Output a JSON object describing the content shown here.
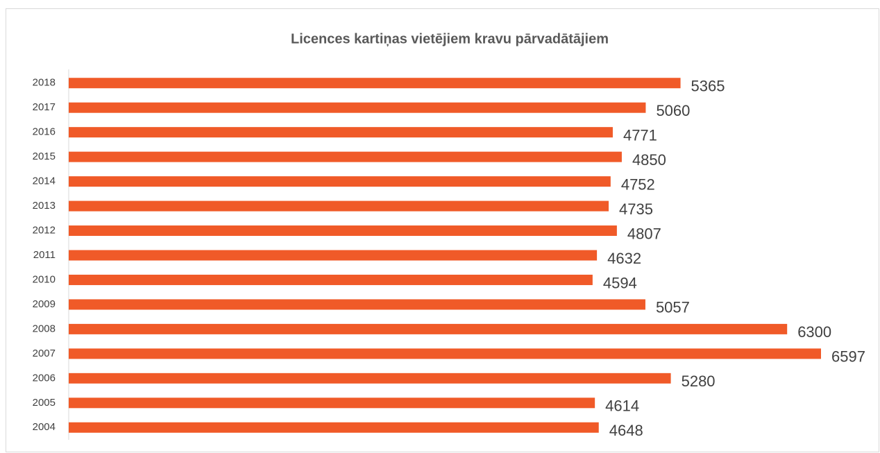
{
  "chart_data": {
    "type": "barh",
    "title": "Licences kartiņas vietējiem kravu pārvadātājiem",
    "categories": [
      "2018",
      "2017",
      "2016",
      "2015",
      "2014",
      "2013",
      "2012",
      "2011",
      "2010",
      "2009",
      "2008",
      "2007",
      "2006",
      "2005",
      "2004"
    ],
    "values": [
      5365,
      5060,
      4771,
      4850,
      4752,
      4735,
      4807,
      4632,
      4594,
      5057,
      6300,
      6597,
      5280,
      4614,
      4648
    ],
    "color": "#f05a28"
  }
}
